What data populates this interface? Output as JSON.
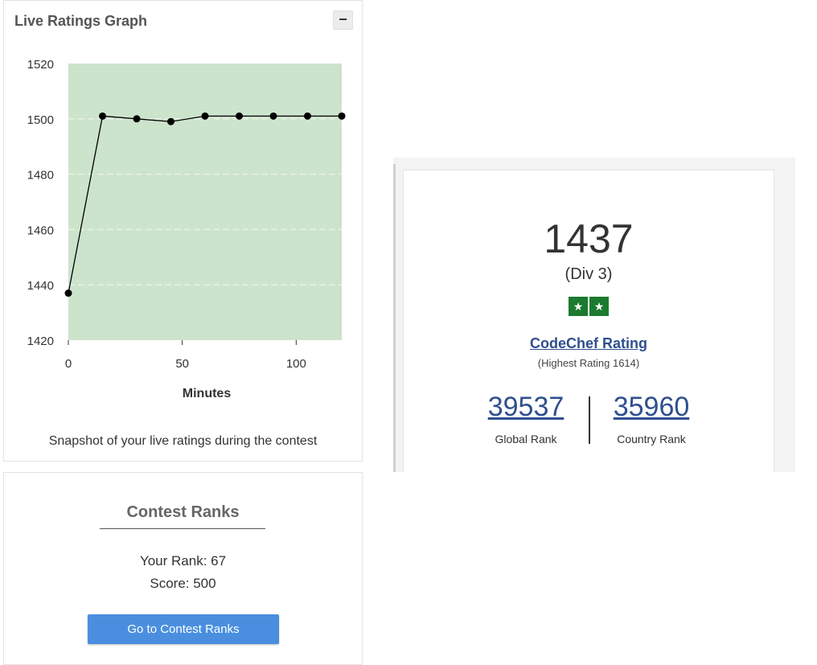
{
  "graph_panel": {
    "title": "Live Ratings Graph",
    "collapse_label": "−",
    "caption": "Snapshot of your live ratings during the contest"
  },
  "chart_data": {
    "type": "line",
    "title": "",
    "xlabel": "Minutes",
    "ylabel": "",
    "x": [
      0,
      15,
      30,
      45,
      60,
      75,
      90,
      105,
      120
    ],
    "series": [
      {
        "values": [
          1437,
          1501,
          1500,
          1499,
          1501,
          1501,
          1501,
          1501,
          1501
        ]
      }
    ],
    "xlim": [
      0,
      120
    ],
    "ylim": [
      1420,
      1520
    ],
    "xticks": [
      0,
      50,
      100
    ],
    "yticks": [
      1420,
      1440,
      1460,
      1480,
      1500,
      1520
    ],
    "grid": true,
    "colors": {
      "plot_background": "#cce3cc",
      "line": "#000000",
      "marker": "#000000",
      "grid": "#e8f1e8"
    }
  },
  "contest_ranks": {
    "title": "Contest Ranks",
    "your_rank": "Your Rank: 67",
    "score": "Score: 500",
    "button_label": "Go to Contest Ranks"
  },
  "rating_card": {
    "rating": "1437",
    "division": "(Div 3)",
    "stars": [
      "★",
      "★"
    ],
    "star_color": "#1b7a2f",
    "rating_link": "CodeChef Rating",
    "highest_rating": "(Highest Rating 1614)",
    "global_rank": {
      "value": "39537",
      "label": "Global Rank"
    },
    "country_rank": {
      "value": "35960",
      "label": "Country Rank"
    },
    "link_color": "#2f4f8f"
  },
  "button_color": "#4a8fdf"
}
